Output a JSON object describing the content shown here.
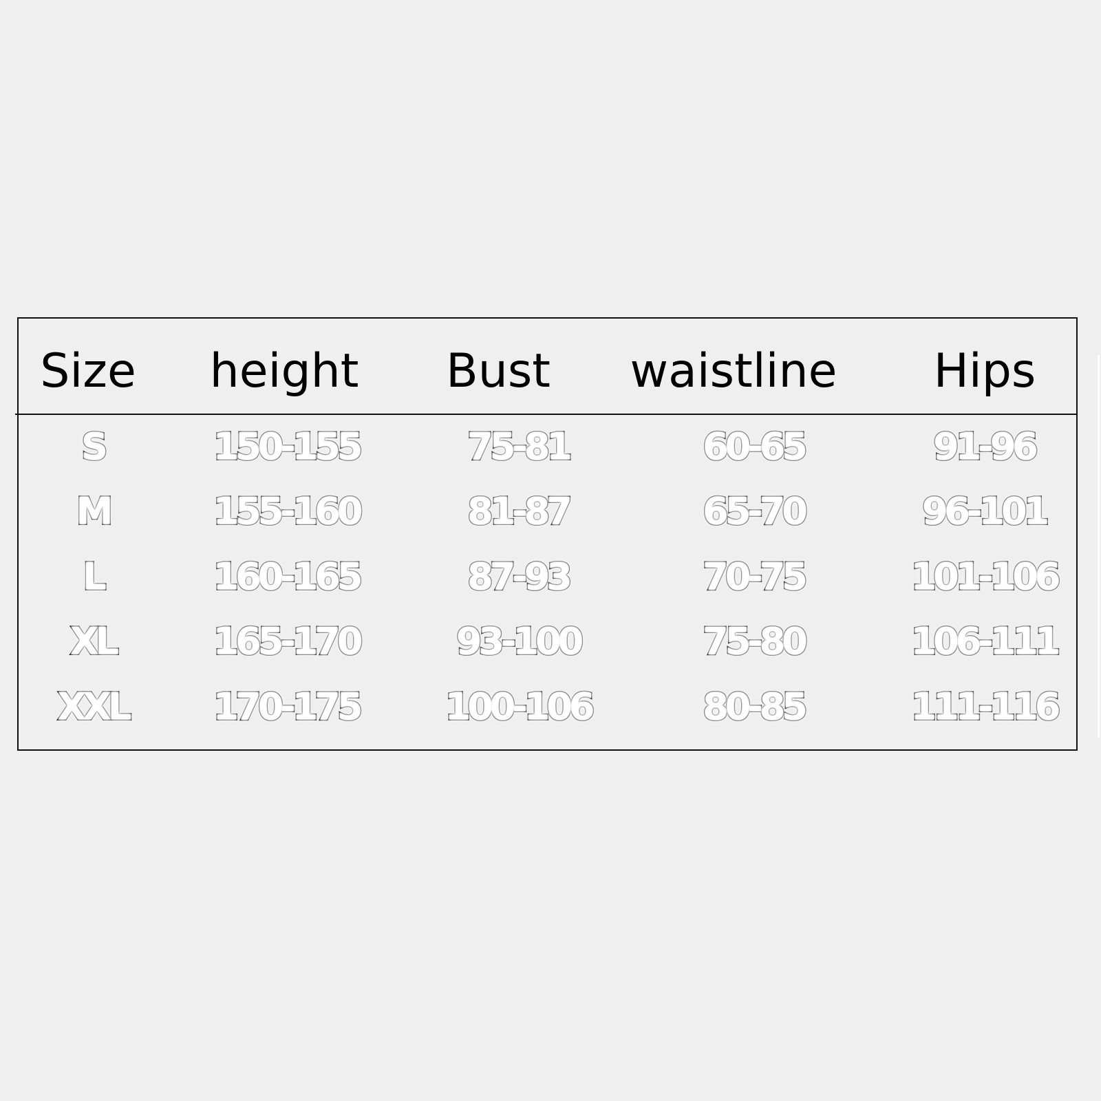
{
  "table": {
    "headers": [
      "Size",
      "height",
      "Bust",
      "waistline",
      "Hips"
    ],
    "rows": [
      [
        "S",
        "150-155",
        "75-81",
        "60-65",
        "91-96"
      ],
      [
        "M",
        "155-160",
        "81-87",
        "65-70",
        "96-101"
      ],
      [
        "L",
        "160-165",
        "87-93",
        "70-75",
        "101-106"
      ],
      [
        "XL",
        "165-170",
        "93-100",
        "75-80",
        "106-111"
      ],
      [
        "XXL",
        "170-175",
        "100-106",
        "80-85",
        "111-116"
      ]
    ]
  }
}
